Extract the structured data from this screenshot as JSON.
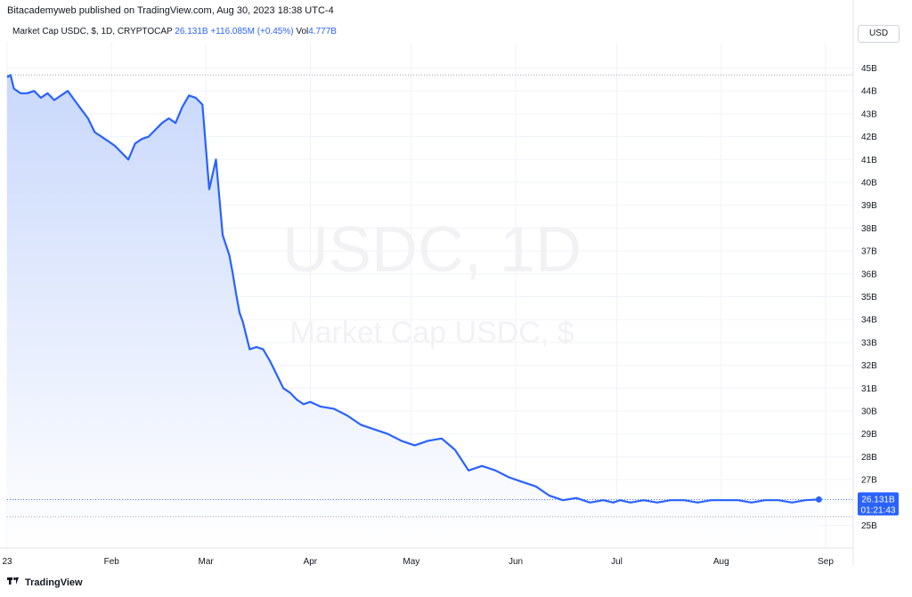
{
  "header": {
    "published_line": "Bitacademyweb published on TradingView.com, Aug 30, 2023 18:38 UTC-4"
  },
  "legend": {
    "title": "Market Cap USDC, $, 1D, CRYPTOCAP",
    "value": "26.131B",
    "change": "+116.085M (+0.45%)",
    "vol_label": "Vol",
    "vol_value": "4.777B"
  },
  "currency_button": "USD",
  "watermark": {
    "symbol": "USDC, 1D",
    "description": "Market Cap USDC, $"
  },
  "price_tag": {
    "value": "26.131B",
    "countdown": "01:21:43"
  },
  "footer": {
    "logo_text": "TradingView"
  },
  "colors": {
    "line": "#2962ff",
    "area_top": "#c9d8fb",
    "area_bottom": "#ffffff",
    "grid": "#f0f3fa",
    "tag": "#2962ff"
  },
  "chart_data": {
    "type": "area",
    "title": "Market Cap USDC, $, 1D, CRYPTOCAP",
    "xlabel": "",
    "ylabel": "",
    "ylim": [
      25,
      45.8
    ],
    "y_ticks": [
      25,
      26,
      27,
      28,
      29,
      30,
      31,
      32,
      33,
      34,
      35,
      36,
      37,
      38,
      39,
      40,
      41,
      42,
      43,
      44,
      45
    ],
    "y_tick_labels": [
      "25B",
      "26B",
      "27B",
      "28B",
      "29B",
      "30B",
      "31B",
      "32B",
      "33B",
      "34B",
      "35B",
      "36B",
      "37B",
      "38B",
      "39B",
      "40B",
      "41B",
      "42B",
      "43B",
      "44B",
      "45B"
    ],
    "x_tick_labels": [
      "23",
      "Feb",
      "Mar",
      "Apr",
      "May",
      "Jun",
      "Jul",
      "Aug",
      "Sep"
    ],
    "x_tick_dates": [
      "2023-01-01",
      "2023-02-01",
      "2023-03-01",
      "2023-04-01",
      "2023-05-01",
      "2023-06-01",
      "2023-07-01",
      "2023-08-01",
      "2023-09-01"
    ],
    "grid": true,
    "series": [
      {
        "x": [
          "2023-01-01",
          "2023-01-02",
          "2023-01-03",
          "2023-01-05",
          "2023-01-07",
          "2023-01-09",
          "2023-01-11",
          "2023-01-13",
          "2023-01-15",
          "2023-01-17",
          "2023-01-19",
          "2023-01-21",
          "2023-01-23",
          "2023-01-25",
          "2023-01-27",
          "2023-01-29",
          "2023-01-31",
          "2023-02-02",
          "2023-02-04",
          "2023-02-06",
          "2023-02-08",
          "2023-02-10",
          "2023-02-12",
          "2023-02-14",
          "2023-02-16",
          "2023-02-18",
          "2023-02-20",
          "2023-02-22",
          "2023-02-24",
          "2023-02-26",
          "2023-02-28",
          "2023-03-02",
          "2023-03-04",
          "2023-03-06",
          "2023-03-08",
          "2023-03-09",
          "2023-03-10",
          "2023-03-11",
          "2023-03-12",
          "2023-03-14",
          "2023-03-16",
          "2023-03-18",
          "2023-03-20",
          "2023-03-22",
          "2023-03-24",
          "2023-03-26",
          "2023-03-28",
          "2023-03-30",
          "2023-04-01",
          "2023-04-04",
          "2023-04-08",
          "2023-04-12",
          "2023-04-16",
          "2023-04-20",
          "2023-04-24",
          "2023-04-28",
          "2023-05-02",
          "2023-05-06",
          "2023-05-10",
          "2023-05-14",
          "2023-05-18",
          "2023-05-22",
          "2023-05-26",
          "2023-05-30",
          "2023-06-03",
          "2023-06-07",
          "2023-06-11",
          "2023-06-15",
          "2023-06-19",
          "2023-06-23",
          "2023-06-27",
          "2023-06-30",
          "2023-07-02",
          "2023-07-05",
          "2023-07-09",
          "2023-07-13",
          "2023-07-17",
          "2023-07-21",
          "2023-07-25",
          "2023-07-29",
          "2023-08-02",
          "2023-08-06",
          "2023-08-10",
          "2023-08-14",
          "2023-08-18",
          "2023-08-22",
          "2023-08-26",
          "2023-08-30"
        ],
        "values": [
          44.6,
          44.7,
          44.1,
          43.9,
          43.9,
          44.0,
          43.7,
          43.9,
          43.6,
          43.8,
          44.0,
          43.6,
          43.2,
          42.8,
          42.2,
          42.0,
          41.8,
          41.6,
          41.3,
          41.0,
          41.7,
          41.9,
          42.0,
          42.3,
          42.6,
          42.8,
          42.6,
          43.3,
          43.8,
          43.7,
          43.4,
          39.7,
          41.0,
          37.7,
          36.8,
          36.0,
          35.1,
          34.3,
          33.9,
          32.7,
          32.8,
          32.7,
          32.2,
          31.6,
          31.0,
          30.8,
          30.5,
          30.3,
          30.4,
          30.2,
          30.1,
          29.8,
          29.4,
          29.2,
          29.0,
          28.7,
          28.5,
          28.7,
          28.8,
          28.3,
          27.4,
          27.6,
          27.4,
          27.1,
          26.9,
          26.7,
          26.3,
          26.1,
          26.2,
          26.0,
          26.1,
          26.0,
          26.1,
          26.0,
          26.1,
          26.0,
          26.1,
          26.1,
          26.0,
          26.1,
          26.1,
          26.1,
          26.0,
          26.1,
          26.1,
          26.0,
          26.1,
          26.131
        ]
      }
    ]
  }
}
